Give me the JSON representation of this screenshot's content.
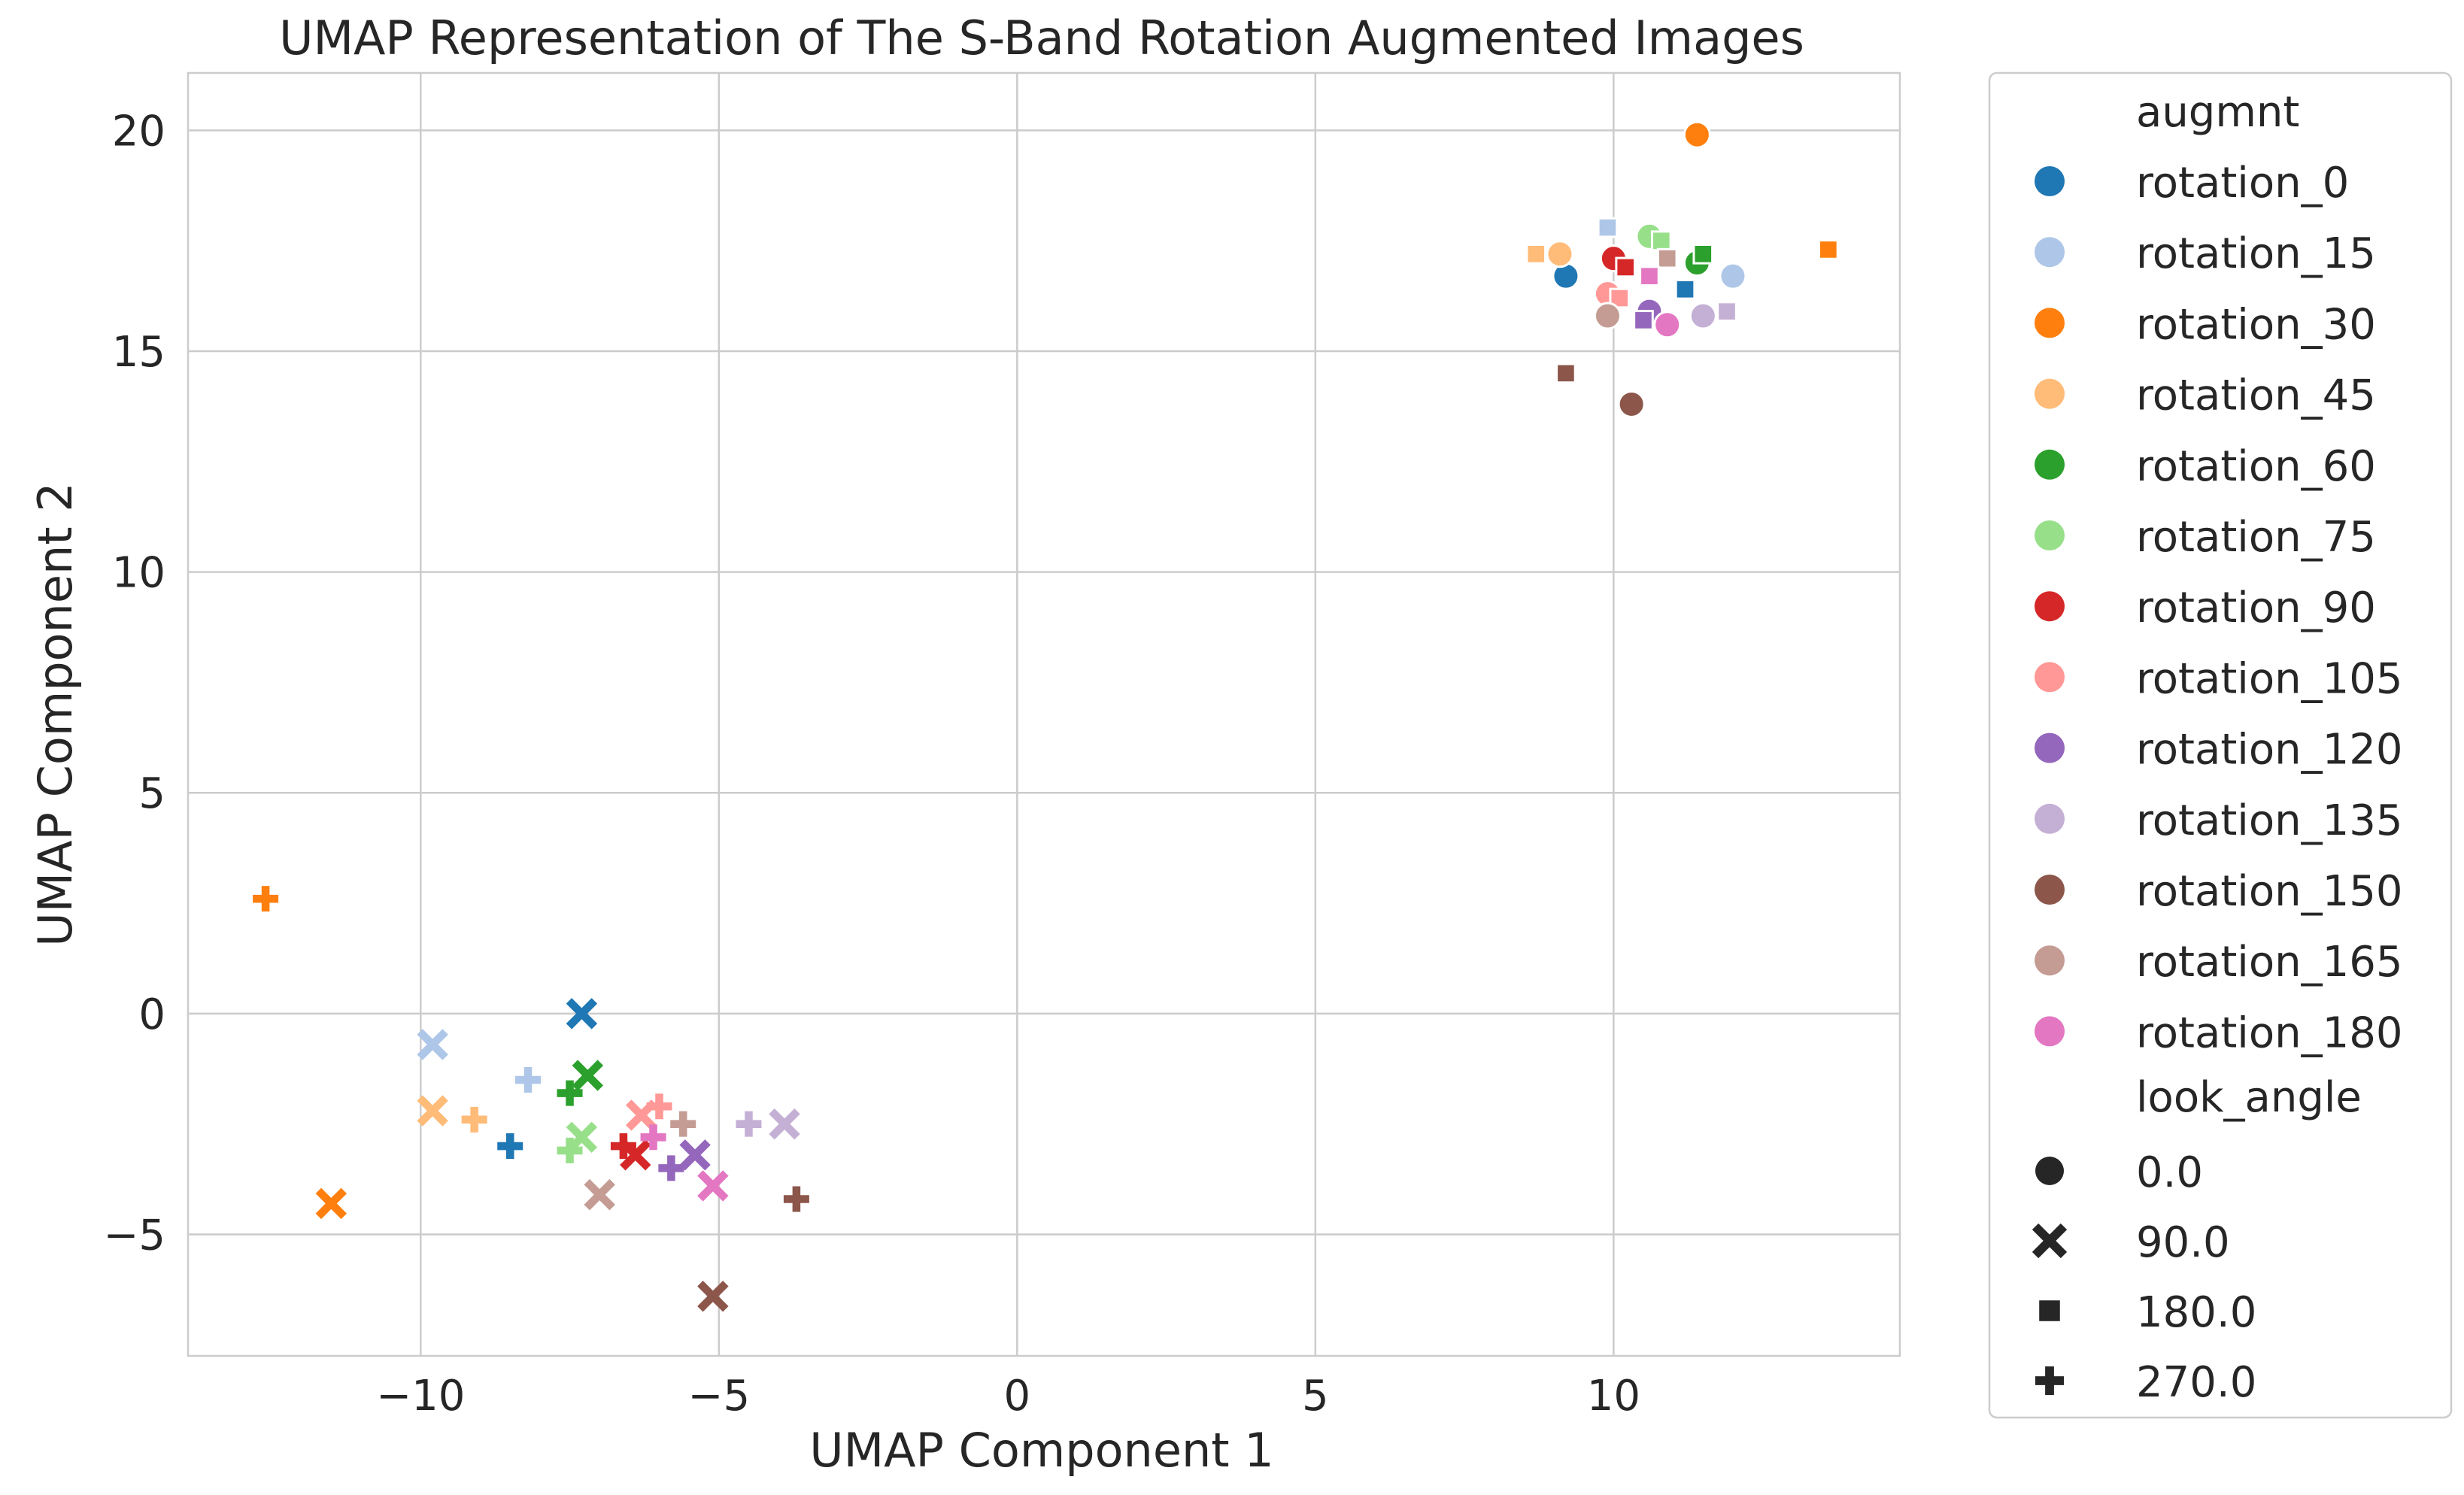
{
  "chart_data": {
    "type": "scatter",
    "title": "UMAP Representation of The S-Band Rotation Augmented Images",
    "xlabel": "UMAP Component 1",
    "ylabel": "UMAP Component 2",
    "xlim": [
      -13.9,
      14.8
    ],
    "ylim": [
      -7.75,
      21.3
    ],
    "xticks": [
      -10,
      -5,
      0,
      5,
      10
    ],
    "yticks": [
      -5,
      0,
      5,
      10,
      15,
      20
    ],
    "xtick_labels": [
      "−10",
      "−5",
      "0",
      "5",
      "10"
    ],
    "ytick_labels": [
      "−5",
      "0",
      "5",
      "10",
      "15",
      "20"
    ],
    "grid": true,
    "legend_position": "outside-right",
    "hue_title": "augmnt",
    "style_title": "look_angle",
    "series": [
      {
        "name": "rotation_0",
        "color": "#1f77b4",
        "points": [
          {
            "x": 9.2,
            "y": 16.7,
            "m": "0.0"
          },
          {
            "x": -7.3,
            "y": 0.0,
            "m": "90.0"
          },
          {
            "x": 11.2,
            "y": 16.4,
            "m": "180.0"
          },
          {
            "x": -8.5,
            "y": -3.0,
            "m": "270.0"
          }
        ]
      },
      {
        "name": "rotation_15",
        "color": "#aec7e8",
        "points": [
          {
            "x": 12.0,
            "y": 16.7,
            "m": "0.0"
          },
          {
            "x": -9.8,
            "y": -0.7,
            "m": "90.0"
          },
          {
            "x": 9.9,
            "y": 17.8,
            "m": "180.0"
          },
          {
            "x": -8.2,
            "y": -1.5,
            "m": "270.0"
          }
        ]
      },
      {
        "name": "rotation_30",
        "color": "#ff7f0e",
        "points": [
          {
            "x": 11.4,
            "y": 19.9,
            "m": "0.0"
          },
          {
            "x": -11.5,
            "y": -4.3,
            "m": "90.0"
          },
          {
            "x": 13.6,
            "y": 17.3,
            "m": "180.0"
          },
          {
            "x": -12.6,
            "y": 2.6,
            "m": "270.0"
          }
        ]
      },
      {
        "name": "rotation_45",
        "color": "#ffbb78",
        "points": [
          {
            "x": 9.1,
            "y": 17.2,
            "m": "0.0"
          },
          {
            "x": -9.8,
            "y": -2.2,
            "m": "90.0"
          },
          {
            "x": 8.7,
            "y": 17.2,
            "m": "180.0"
          },
          {
            "x": -9.1,
            "y": -2.4,
            "m": "270.0"
          }
        ]
      },
      {
        "name": "rotation_60",
        "color": "#2ca02c",
        "points": [
          {
            "x": 11.4,
            "y": 17.0,
            "m": "0.0"
          },
          {
            "x": -7.2,
            "y": -1.4,
            "m": "90.0"
          },
          {
            "x": 11.5,
            "y": 17.2,
            "m": "180.0"
          },
          {
            "x": -7.5,
            "y": -1.8,
            "m": "270.0"
          }
        ]
      },
      {
        "name": "rotation_75",
        "color": "#98df8a",
        "points": [
          {
            "x": 10.6,
            "y": 17.6,
            "m": "0.0"
          },
          {
            "x": -7.3,
            "y": -2.8,
            "m": "90.0"
          },
          {
            "x": 10.8,
            "y": 17.5,
            "m": "180.0"
          },
          {
            "x": -7.5,
            "y": -3.1,
            "m": "270.0"
          }
        ]
      },
      {
        "name": "rotation_90",
        "color": "#d62728",
        "points": [
          {
            "x": 10.0,
            "y": 17.1,
            "m": "0.0"
          },
          {
            "x": -6.4,
            "y": -3.2,
            "m": "90.0"
          },
          {
            "x": 10.2,
            "y": 16.9,
            "m": "180.0"
          },
          {
            "x": -6.6,
            "y": -3.0,
            "m": "270.0"
          }
        ]
      },
      {
        "name": "rotation_105",
        "color": "#ff9896",
        "points": [
          {
            "x": 9.9,
            "y": 16.3,
            "m": "0.0"
          },
          {
            "x": -6.3,
            "y": -2.3,
            "m": "90.0"
          },
          {
            "x": 10.1,
            "y": 16.2,
            "m": "180.0"
          },
          {
            "x": -6.0,
            "y": -2.1,
            "m": "270.0"
          }
        ]
      },
      {
        "name": "rotation_120",
        "color": "#9467bd",
        "points": [
          {
            "x": 10.6,
            "y": 15.9,
            "m": "0.0"
          },
          {
            "x": -5.4,
            "y": -3.2,
            "m": "90.0"
          },
          {
            "x": 10.5,
            "y": 15.7,
            "m": "180.0"
          },
          {
            "x": -5.8,
            "y": -3.5,
            "m": "270.0"
          }
        ]
      },
      {
        "name": "rotation_135",
        "color": "#c5b0d5",
        "points": [
          {
            "x": 11.5,
            "y": 15.8,
            "m": "0.0"
          },
          {
            "x": -3.9,
            "y": -2.5,
            "m": "90.0"
          },
          {
            "x": 11.9,
            "y": 15.9,
            "m": "180.0"
          },
          {
            "x": -4.5,
            "y": -2.5,
            "m": "270.0"
          }
        ]
      },
      {
        "name": "rotation_150",
        "color": "#8c564b",
        "points": [
          {
            "x": 10.3,
            "y": 13.8,
            "m": "0.0"
          },
          {
            "x": -5.1,
            "y": -6.4,
            "m": "90.0"
          },
          {
            "x": 9.2,
            "y": 14.5,
            "m": "180.0"
          },
          {
            "x": -3.7,
            "y": -4.2,
            "m": "270.0"
          }
        ]
      },
      {
        "name": "rotation_165",
        "color": "#c49c94",
        "points": [
          {
            "x": 9.9,
            "y": 15.8,
            "m": "0.0"
          },
          {
            "x": -7.0,
            "y": -4.1,
            "m": "90.0"
          },
          {
            "x": 10.9,
            "y": 17.1,
            "m": "180.0"
          },
          {
            "x": -5.6,
            "y": -2.5,
            "m": "270.0"
          }
        ]
      },
      {
        "name": "rotation_180",
        "color": "#e377c2",
        "points": [
          {
            "x": 10.9,
            "y": 15.6,
            "m": "0.0"
          },
          {
            "x": -5.1,
            "y": -3.9,
            "m": "90.0"
          },
          {
            "x": 10.6,
            "y": 16.7,
            "m": "180.0"
          },
          {
            "x": -6.1,
            "y": -2.8,
            "m": "270.0"
          }
        ]
      }
    ],
    "markers": [
      {
        "label": "0.0",
        "shape": "circle"
      },
      {
        "label": "90.0",
        "shape": "x"
      },
      {
        "label": "180.0",
        "shape": "square"
      },
      {
        "label": "270.0",
        "shape": "plus"
      }
    ]
  }
}
